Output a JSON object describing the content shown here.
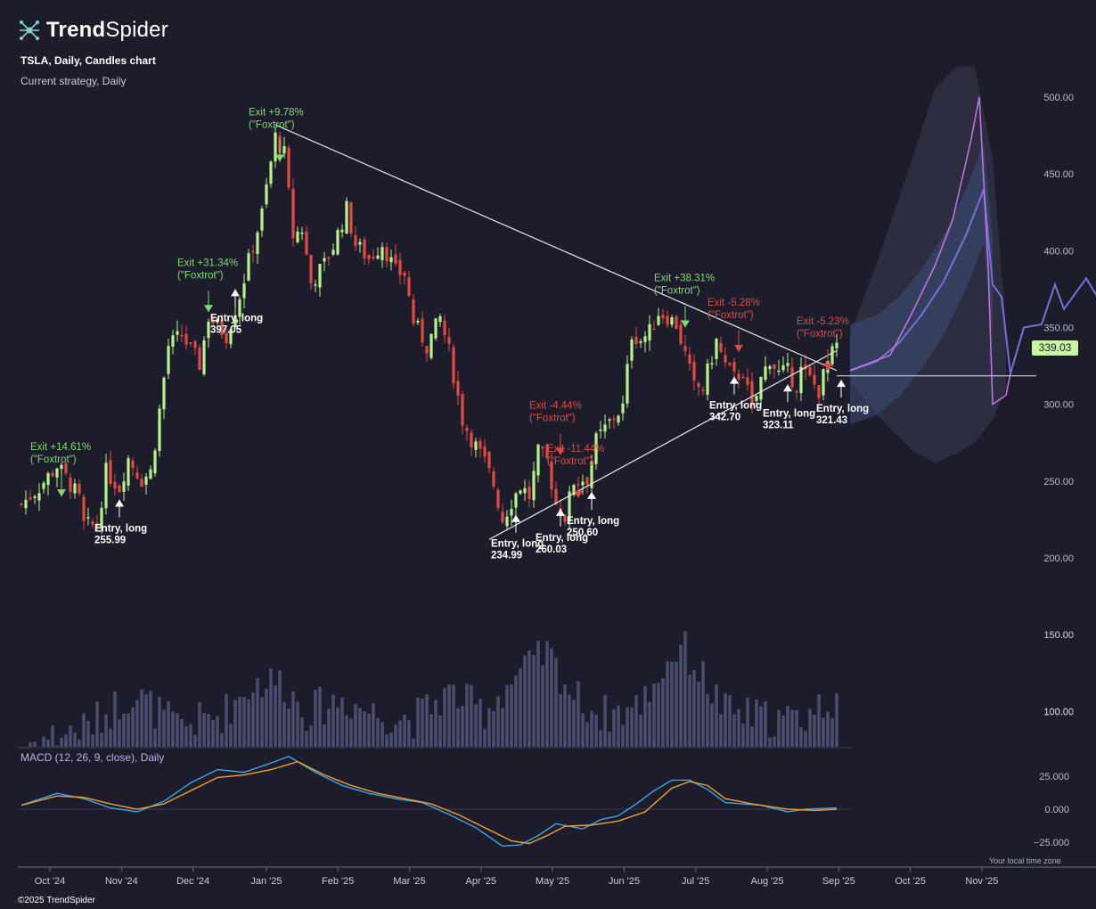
{
  "header": {
    "brand_bold": "Trend",
    "brand_light": "Spider",
    "chart_title": "TSLA, Daily, Candles chart",
    "strategy": "Current strategy, Daily"
  },
  "footer": {
    "copyright": "©2025 TrendSpider",
    "timezone": "Your local time zone"
  },
  "colors": {
    "background": "#1c1c2b",
    "up": "#b6f28a",
    "down": "#e04a45",
    "exit_win": "#82d873",
    "exit_loss": "#e04a45",
    "volume": "#4a4d6e",
    "macd_line": "#3aa6e8",
    "signal_line": "#f0a026",
    "forecast": "#7072d8",
    "forecast_peak": "#c874e8",
    "badge": "#c8f5a0"
  },
  "chart_data": {
    "type": "candlestick",
    "symbol": "TSLA",
    "interval": "Daily",
    "price_axis": {
      "ticks": [
        "500.00",
        "450.00",
        "400.00",
        "350.00",
        "300.00",
        "250.00",
        "200.00",
        "150.00",
        "100.00"
      ],
      "range": [
        120,
        515
      ]
    },
    "x_axis": {
      "ticks": [
        "Oct '24",
        "Nov '24",
        "Dec '24",
        "Jan '25",
        "Feb '25",
        "Mar '25",
        "Apr '25",
        "May '25",
        "Jun '25",
        "Jul '25",
        "Aug '25",
        "Sep '25",
        "Oct '25",
        "Nov '25"
      ]
    },
    "last_price": "339.03",
    "price_anchors": [
      [
        0,
        235
      ],
      [
        4,
        246
      ],
      [
        8,
        260
      ],
      [
        11,
        248
      ],
      [
        13,
        238
      ],
      [
        14,
        221
      ],
      [
        17,
        221
      ],
      [
        19,
        256
      ],
      [
        22,
        246
      ],
      [
        24,
        265
      ],
      [
        27,
        251
      ],
      [
        29,
        256
      ],
      [
        30,
        275
      ],
      [
        33,
        338
      ],
      [
        36,
        345
      ],
      [
        40,
        326
      ],
      [
        42,
        357
      ],
      [
        46,
        345
      ],
      [
        49,
        371
      ],
      [
        51,
        393
      ],
      [
        54,
        424
      ],
      [
        57,
        474
      ],
      [
        59,
        463
      ],
      [
        61,
        410
      ],
      [
        63,
        414
      ],
      [
        65,
        379
      ],
      [
        68,
        391
      ],
      [
        70,
        403
      ],
      [
        73,
        427
      ],
      [
        75,
        404
      ],
      [
        78,
        395
      ],
      [
        81,
        405
      ],
      [
        84,
        386
      ],
      [
        86,
        385
      ],
      [
        88,
        354
      ],
      [
        91,
        338
      ],
      [
        94,
        356
      ],
      [
        96,
        334
      ],
      [
        99,
        290
      ],
      [
        101,
        278
      ],
      [
        104,
        262
      ],
      [
        106,
        248
      ],
      [
        108,
        225
      ],
      [
        110,
        237
      ],
      [
        112,
        247
      ],
      [
        114,
        240
      ],
      [
        116,
        268
      ],
      [
        118,
        263
      ],
      [
        120,
        235
      ],
      [
        122,
        227
      ],
      [
        124,
        250
      ],
      [
        127,
        252
      ],
      [
        129,
        276
      ],
      [
        131,
        284
      ],
      [
        133,
        292
      ],
      [
        135,
        298
      ],
      [
        137,
        346
      ],
      [
        139,
        342
      ],
      [
        141,
        347
      ],
      [
        143,
        360
      ],
      [
        145,
        357
      ],
      [
        147,
        352
      ],
      [
        149,
        332
      ],
      [
        151,
        311
      ],
      [
        153,
        311
      ],
      [
        156,
        341
      ],
      [
        158,
        325
      ],
      [
        160,
        317
      ],
      [
        162,
        322
      ],
      [
        164,
        295
      ],
      [
        166,
        316
      ],
      [
        168,
        330
      ],
      [
        170,
        320
      ],
      [
        172,
        321
      ],
      [
        174,
        313
      ],
      [
        175,
        322
      ],
      [
        177,
        316
      ],
      [
        179,
        309
      ],
      [
        181,
        327
      ],
      [
        183,
        338
      ]
    ],
    "volume_anchors": [
      [
        0,
        78
      ],
      [
        15,
        90
      ],
      [
        25,
        112
      ],
      [
        35,
        90
      ],
      [
        45,
        98
      ],
      [
        52,
        118
      ],
      [
        58,
        120
      ],
      [
        64,
        100
      ],
      [
        72,
        108
      ],
      [
        80,
        98
      ],
      [
        88,
        95
      ],
      [
        96,
        112
      ],
      [
        104,
        100
      ],
      [
        110,
        120
      ],
      [
        118,
        138
      ],
      [
        124,
        110
      ],
      [
        130,
        98
      ],
      [
        138,
        102
      ],
      [
        148,
        144
      ],
      [
        158,
        100
      ],
      [
        166,
        96
      ],
      [
        174,
        94
      ],
      [
        183,
        110
      ]
    ],
    "volume_axis": {
      "ticks": [
        "150.00",
        "100.00"
      ],
      "values": [
        150,
        100
      ]
    },
    "macd": {
      "title": "MACD (12, 26, 9, close), Daily",
      "ticks": [
        "25.000",
        "0.000",
        "−25.000"
      ],
      "range": [
        -33,
        42
      ],
      "macd_anchors": [
        [
          0,
          3
        ],
        [
          8,
          12
        ],
        [
          14,
          8
        ],
        [
          20,
          1
        ],
        [
          26,
          -2
        ],
        [
          32,
          6
        ],
        [
          38,
          20
        ],
        [
          44,
          30
        ],
        [
          50,
          28
        ],
        [
          56,
          35
        ],
        [
          60,
          40
        ],
        [
          66,
          28
        ],
        [
          72,
          18
        ],
        [
          78,
          12
        ],
        [
          84,
          8
        ],
        [
          90,
          5
        ],
        [
          96,
          -4
        ],
        [
          102,
          -14
        ],
        [
          108,
          -28
        ],
        [
          112,
          -27
        ],
        [
          116,
          -20
        ],
        [
          120,
          -11
        ],
        [
          126,
          -15
        ],
        [
          130,
          -8
        ],
        [
          134,
          -5
        ],
        [
          138,
          4
        ],
        [
          142,
          14
        ],
        [
          146,
          22
        ],
        [
          150,
          22
        ],
        [
          154,
          15
        ],
        [
          158,
          5
        ],
        [
          166,
          3
        ],
        [
          172,
          -2
        ],
        [
          176,
          0
        ],
        [
          183,
          1
        ]
      ],
      "signal_anchors": [
        [
          0,
          3
        ],
        [
          8,
          10
        ],
        [
          14,
          9
        ],
        [
          20,
          4
        ],
        [
          26,
          0
        ],
        [
          32,
          4
        ],
        [
          38,
          14
        ],
        [
          44,
          24
        ],
        [
          50,
          26
        ],
        [
          56,
          30
        ],
        [
          62,
          36
        ],
        [
          68,
          26
        ],
        [
          74,
          18
        ],
        [
          80,
          12
        ],
        [
          86,
          8
        ],
        [
          92,
          4
        ],
        [
          98,
          -4
        ],
        [
          104,
          -14
        ],
        [
          110,
          -24
        ],
        [
          114,
          -26
        ],
        [
          118,
          -20
        ],
        [
          122,
          -13
        ],
        [
          128,
          -12
        ],
        [
          134,
          -9
        ],
        [
          140,
          -2
        ],
        [
          146,
          16
        ],
        [
          150,
          21
        ],
        [
          154,
          18
        ],
        [
          158,
          8
        ],
        [
          164,
          4
        ],
        [
          172,
          0
        ],
        [
          178,
          -1
        ],
        [
          183,
          0
        ]
      ]
    },
    "trendlines": [
      {
        "from": [
          57,
          482
        ],
        "to": [
          183,
          322
        ]
      },
      {
        "from": [
          105,
          212
        ],
        "to": [
          183,
          335
        ]
      }
    ],
    "support_line": {
      "value": 318.5,
      "from": 183,
      "to": 215
    },
    "signals": [
      {
        "type": "exit",
        "label": "Exit +14.61%",
        "sub": "(\"Foxtrot\")",
        "result": "win",
        "bar": 9,
        "price": 240
      },
      {
        "type": "entry",
        "label": "Entry, long",
        "price_label": "255.99",
        "bar": 22,
        "price": 238
      },
      {
        "type": "exit",
        "label": "Exit +31.34%",
        "sub": "(\"Foxtrot\")",
        "result": "win",
        "bar": 42,
        "price": 360
      },
      {
        "type": "entry",
        "label": "Entry, long",
        "price_label": "397.05",
        "bar": 48,
        "price": 375
      },
      {
        "type": "exit",
        "label": "Exit +9.78%",
        "sub": "(\"Foxtrot\")",
        "result": "win",
        "bar": 58,
        "price": 458
      },
      {
        "type": "entry",
        "label": "Entry, long",
        "price_label": "234.99",
        "bar": 111,
        "price": 228
      },
      {
        "type": "entry",
        "label": "Entry, long",
        "price_label": "260.03",
        "bar": 121,
        "price": 232
      },
      {
        "type": "exit",
        "label": "Exit -4.44%",
        "sub": "(\"Foxtrot\")",
        "result": "loss",
        "bar": 121,
        "price": 267
      },
      {
        "type": "exit",
        "label": "Exit -11.44%",
        "sub": "(\"Foxtrot\")",
        "result": "loss",
        "bar": 125,
        "price": 239
      },
      {
        "type": "entry",
        "label": "Entry, long",
        "price_label": "250.60",
        "bar": 128,
        "price": 243
      },
      {
        "type": "exit",
        "label": "Exit +38.31%",
        "sub": "(\"Foxtrot\")",
        "result": "win",
        "bar": 149,
        "price": 350
      },
      {
        "type": "exit",
        "label": "Exit -5.28%",
        "sub": "(\"Foxtrot\")",
        "result": "loss",
        "bar": 161,
        "price": 334
      },
      {
        "type": "entry",
        "label": "Entry, long",
        "price_label": "342.70",
        "bar": 160,
        "price": 318
      },
      {
        "type": "entry",
        "label": "Entry, long",
        "price_label": "323.11",
        "bar": 172,
        "price": 313
      },
      {
        "type": "exit",
        "label": "Exit -5.23%",
        "sub": "(\"Foxtrot\")",
        "result": "loss",
        "bar": 181,
        "price": 322
      },
      {
        "type": "entry",
        "label": "Entry, long",
        "price_label": "321.43",
        "bar": 184,
        "price": 316
      }
    ],
    "forecast": {
      "median": [
        [
          186,
          322
        ],
        [
          192,
          328
        ],
        [
          197,
          340
        ],
        [
          202,
          358
        ],
        [
          207,
          380
        ],
        [
          212,
          410
        ],
        [
          216,
          440
        ],
        [
          218,
          378
        ],
        [
          220,
          370
        ],
        [
          222,
          320
        ],
        [
          225,
          350
        ],
        [
          229,
          352
        ],
        [
          232,
          378
        ],
        [
          234,
          362
        ],
        [
          236,
          370
        ],
        [
          239,
          382
        ],
        [
          244,
          358
        ]
      ],
      "peak": [
        [
          186,
          322
        ],
        [
          195,
          332
        ],
        [
          200,
          360
        ],
        [
          205,
          390
        ],
        [
          209,
          420
        ],
        [
          213,
          470
        ],
        [
          215,
          500
        ],
        [
          217,
          390
        ],
        [
          218,
          300
        ],
        [
          221,
          306
        ],
        [
          222,
          320
        ]
      ],
      "upper": [
        [
          186,
          345
        ],
        [
          193,
          400
        ],
        [
          200,
          460
        ],
        [
          205,
          505
        ],
        [
          210,
          520
        ],
        [
          214,
          520
        ],
        [
          218,
          460
        ],
        [
          221,
          350
        ]
      ],
      "lower": [
        [
          186,
          315
        ],
        [
          193,
          290
        ],
        [
          200,
          270
        ],
        [
          205,
          262
        ],
        [
          210,
          268
        ],
        [
          214,
          275
        ],
        [
          218,
          290
        ],
        [
          221,
          310
        ]
      ]
    }
  }
}
